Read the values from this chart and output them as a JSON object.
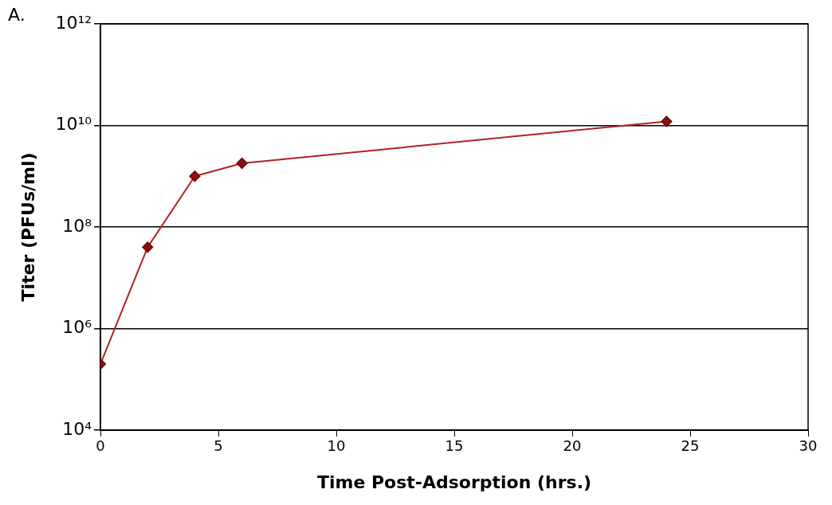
{
  "chart_data": {
    "type": "line",
    "xlabel": "Time Post-Adsorption (hrs.)",
    "ylabel": "Titer (PFUs/ml)",
    "annotations": [
      "A."
    ],
    "x": [
      0,
      2,
      4,
      6,
      24
    ],
    "series": [
      {
        "color": "#b22222",
        "values": [
          200000,
          40000000,
          1000000000,
          1800000000,
          12000000000
        ]
      }
    ],
    "log": "y",
    "xlim": [
      0,
      30
    ],
    "xticks": [
      0,
      5,
      10,
      15,
      20,
      25,
      30
    ],
    "ylim": [
      10000,
      1000000000000
    ],
    "yticks": [
      {
        "value": 10000,
        "label": "10⁴"
      },
      {
        "value": 1000000,
        "label": "10⁶"
      },
      {
        "value": 100000000,
        "label": "10⁸"
      },
      {
        "value": 10000000000,
        "label": "10¹⁰"
      },
      {
        "value": 1000000000000,
        "label": "10¹²"
      }
    ],
    "grid": "y",
    "marker": "diamond",
    "line_style": "solid"
  }
}
